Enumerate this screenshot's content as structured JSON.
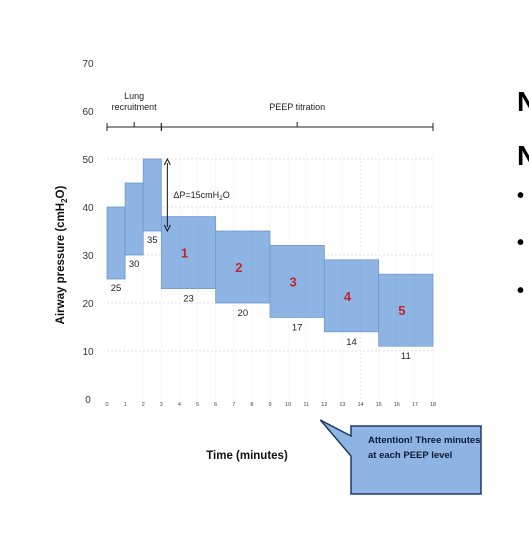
{
  "chart_data": {
    "type": "bar",
    "ylabel": "Airway pressure (cmH2O)",
    "ylabel_main": "Airway pressure (cmH",
    "ylabel_sub": "2",
    "ylabel_tail": "O)",
    "xlabel": "Time (minutes)",
    "ylim": [
      0,
      70
    ],
    "yticks": [
      "0",
      "10",
      "20",
      "30",
      "40",
      "50",
      "60",
      "70"
    ],
    "xlim": [
      0,
      18
    ],
    "xticks": [
      "0",
      "1",
      "2",
      "3",
      "4",
      "5",
      "6",
      "7",
      "8",
      "9",
      "10",
      "11",
      "12",
      "13",
      "14",
      "15",
      "16",
      "17",
      "18"
    ],
    "grid": true,
    "recruitment_bars": [
      {
        "x_start": 0,
        "x_end": 1,
        "low": 25,
        "high": 40,
        "label": "25"
      },
      {
        "x_start": 1,
        "x_end": 2,
        "low": 30,
        "high": 45,
        "label": "30"
      },
      {
        "x_start": 2,
        "x_end": 3,
        "low": 35,
        "high": 50,
        "label": "35"
      }
    ],
    "peep_steps": [
      {
        "x_start": 3,
        "x_end": 6,
        "low": 23,
        "high": 38,
        "label": "23",
        "step": "1"
      },
      {
        "x_start": 6,
        "x_end": 9,
        "low": 20,
        "high": 35,
        "label": "20",
        "step": "2"
      },
      {
        "x_start": 9,
        "x_end": 12,
        "low": 17,
        "high": 32,
        "label": "17",
        "step": "3"
      },
      {
        "x_start": 12,
        "x_end": 15,
        "low": 14,
        "high": 29,
        "label": "14",
        "step": "4"
      },
      {
        "x_start": 15,
        "x_end": 18,
        "low": 11,
        "high": 26,
        "label": "11",
        "step": "5"
      }
    ],
    "phases": [
      {
        "label_lines": [
          "Lung",
          "recruitment"
        ],
        "x_start": 0,
        "x_end": 3
      },
      {
        "label_lines": [
          "PEEP titration"
        ],
        "x_start": 3,
        "x_end": 18
      }
    ],
    "annotation_dp": {
      "text": "ΔP=15cmH",
      "sub": "2",
      "tail": "O",
      "x": 3,
      "from": 50,
      "to": 35
    },
    "callout": {
      "text": "Attention! Three minutes at each PEEP level",
      "points_to_x": 12
    },
    "colors": {
      "bar_fill": "#8eb4e3",
      "bar_stroke": "#6f98cc",
      "step_number": "#c0272d",
      "callout_fill": "#8eb4e3",
      "callout_stroke": "#1f3864"
    }
  },
  "right_fragment": {
    "heading_chars": [
      "N",
      "N"
    ],
    "bullets": [
      "•",
      "•",
      "•"
    ]
  }
}
